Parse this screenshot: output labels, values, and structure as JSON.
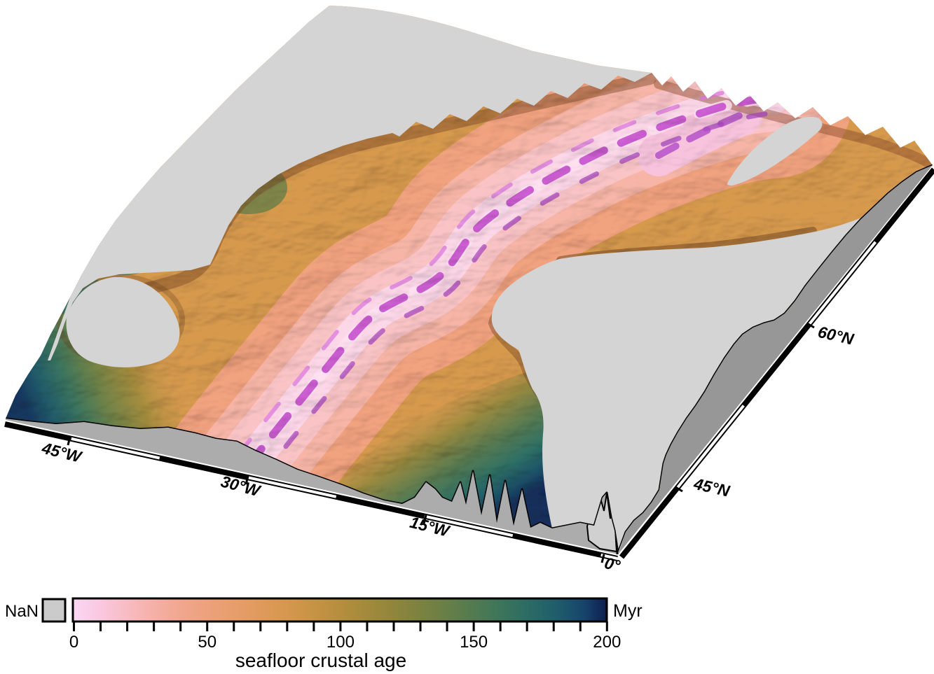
{
  "figure": {
    "background": "#FFFFFF",
    "description": "3D perspective relief surface of North Atlantic seafloor colored by crustal age, GMT grdview style",
    "colors": {
      "nan_surface": "#D4D4D4",
      "wall_left": "#ACACAC",
      "wall_right": "#979797",
      "wall_silhouette": "#D0D0D0",
      "outline": "#000000"
    }
  },
  "axes": {
    "x_tick_labels": [
      "45°W",
      "30°W",
      "15°W",
      "0°"
    ],
    "y_tick_labels": [
      "45°N",
      "60°N"
    ]
  },
  "colorbar": {
    "nan_label": "NaN",
    "nan_color": "#CBCBCB",
    "unit": "Myr",
    "title": "seafloor crustal age",
    "min": 0,
    "max": 200,
    "minor_step": 10,
    "tick_labels": [
      "0",
      "50",
      "100",
      "150",
      "200"
    ],
    "stops": [
      [
        "0%",
        "#FBD7F5"
      ],
      [
        "5%",
        "#FAC8E0"
      ],
      [
        "10%",
        "#F8BCC4"
      ],
      [
        "15%",
        "#F5B0A8"
      ],
      [
        "20%",
        "#F1A78F"
      ],
      [
        "25%",
        "#EDA17D"
      ],
      [
        "30%",
        "#E89E6C"
      ],
      [
        "35%",
        "#E09A5C"
      ],
      [
        "40%",
        "#D6974E"
      ],
      [
        "45%",
        "#C79344"
      ],
      [
        "50%",
        "#B68E3E"
      ],
      [
        "55%",
        "#A38A3B"
      ],
      [
        "60%",
        "#90863B"
      ],
      [
        "65%",
        "#7C8240"
      ],
      [
        "70%",
        "#687F47"
      ],
      [
        "75%",
        "#527A50"
      ],
      [
        "80%",
        "#3D755B"
      ],
      [
        "85%",
        "#2C6C64"
      ],
      [
        "90%",
        "#205F6B"
      ],
      [
        "93%",
        "#1B526C"
      ],
      [
        "96%",
        "#16426A"
      ],
      [
        "98%",
        "#122F5D"
      ],
      [
        "100%",
        "#0E1F4E"
      ]
    ]
  },
  "chart_data": {
    "type": "3d_surface_map",
    "title": "seafloor crustal age",
    "value_unit": "Myr",
    "value_range": [
      0,
      200
    ],
    "colorbar_tick_labels": [
      "0",
      "50",
      "100",
      "150",
      "200"
    ],
    "colorbar_minor_tick_step": 10,
    "nan_shown_as": "flat gray (NaN box in legend)",
    "x_axis_tick_labels": [
      "45°W",
      "30°W",
      "15°W",
      "0°"
    ],
    "y_axis_tick_labels": [
      "45°N",
      "60°N"
    ],
    "legend_position": "bottom-left horizontal colorbar"
  }
}
